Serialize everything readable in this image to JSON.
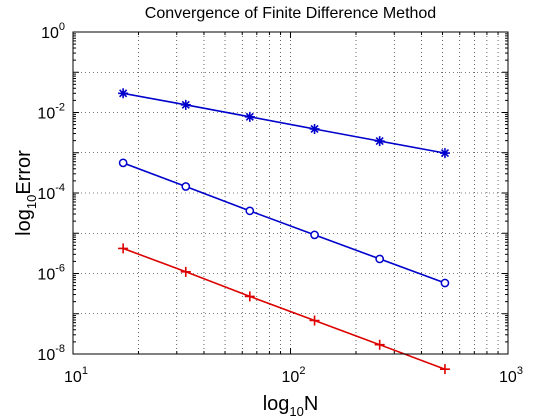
{
  "chart_data": {
    "type": "line",
    "title": "Convergence of Finite Difference Method",
    "xlabel": {
      "main": "log",
      "sub": "10",
      "rest": "N"
    },
    "ylabel": {
      "main": "log",
      "sub": "10",
      "rest": "Error"
    },
    "xscale": "log",
    "yscale": "log",
    "xlim": [
      10,
      1000
    ],
    "ylim": [
      1e-08,
      1
    ],
    "grid": "dotted (major and minor)",
    "xticks": [
      {
        "value": 10,
        "base": "10",
        "exp": "1"
      },
      {
        "value": 100,
        "base": "10",
        "exp": "2"
      },
      {
        "value": 1000,
        "base": "10",
        "exp": "3"
      }
    ],
    "yticks": [
      {
        "value": 1e-08,
        "base": "10",
        "exp": "-8"
      },
      {
        "value": 1e-06,
        "base": "10",
        "exp": "-6"
      },
      {
        "value": 0.0001,
        "base": "10",
        "exp": "-4"
      },
      {
        "value": 0.01,
        "base": "10",
        "exp": "-2"
      },
      {
        "value": 1,
        "base": "10",
        "exp": "0"
      }
    ],
    "x": [
      17,
      33,
      65,
      129,
      257,
      513
    ],
    "series": [
      {
        "marker": "star",
        "color": "#0000cc",
        "values": [
          0.03,
          0.0155,
          0.0078,
          0.0039,
          0.00195,
          0.00098
        ]
      },
      {
        "marker": "circle",
        "color": "#0000cc",
        "values": [
          0.00056,
          0.000145,
          3.6e-05,
          9.1e-06,
          2.3e-06,
          5.8e-07
        ]
      },
      {
        "marker": "plus",
        "color": "#dd0000",
        "values": [
          4.2e-06,
          1.1e-06,
          2.7e-07,
          6.8e-08,
          1.7e-08,
          4.2e-09
        ]
      }
    ]
  }
}
